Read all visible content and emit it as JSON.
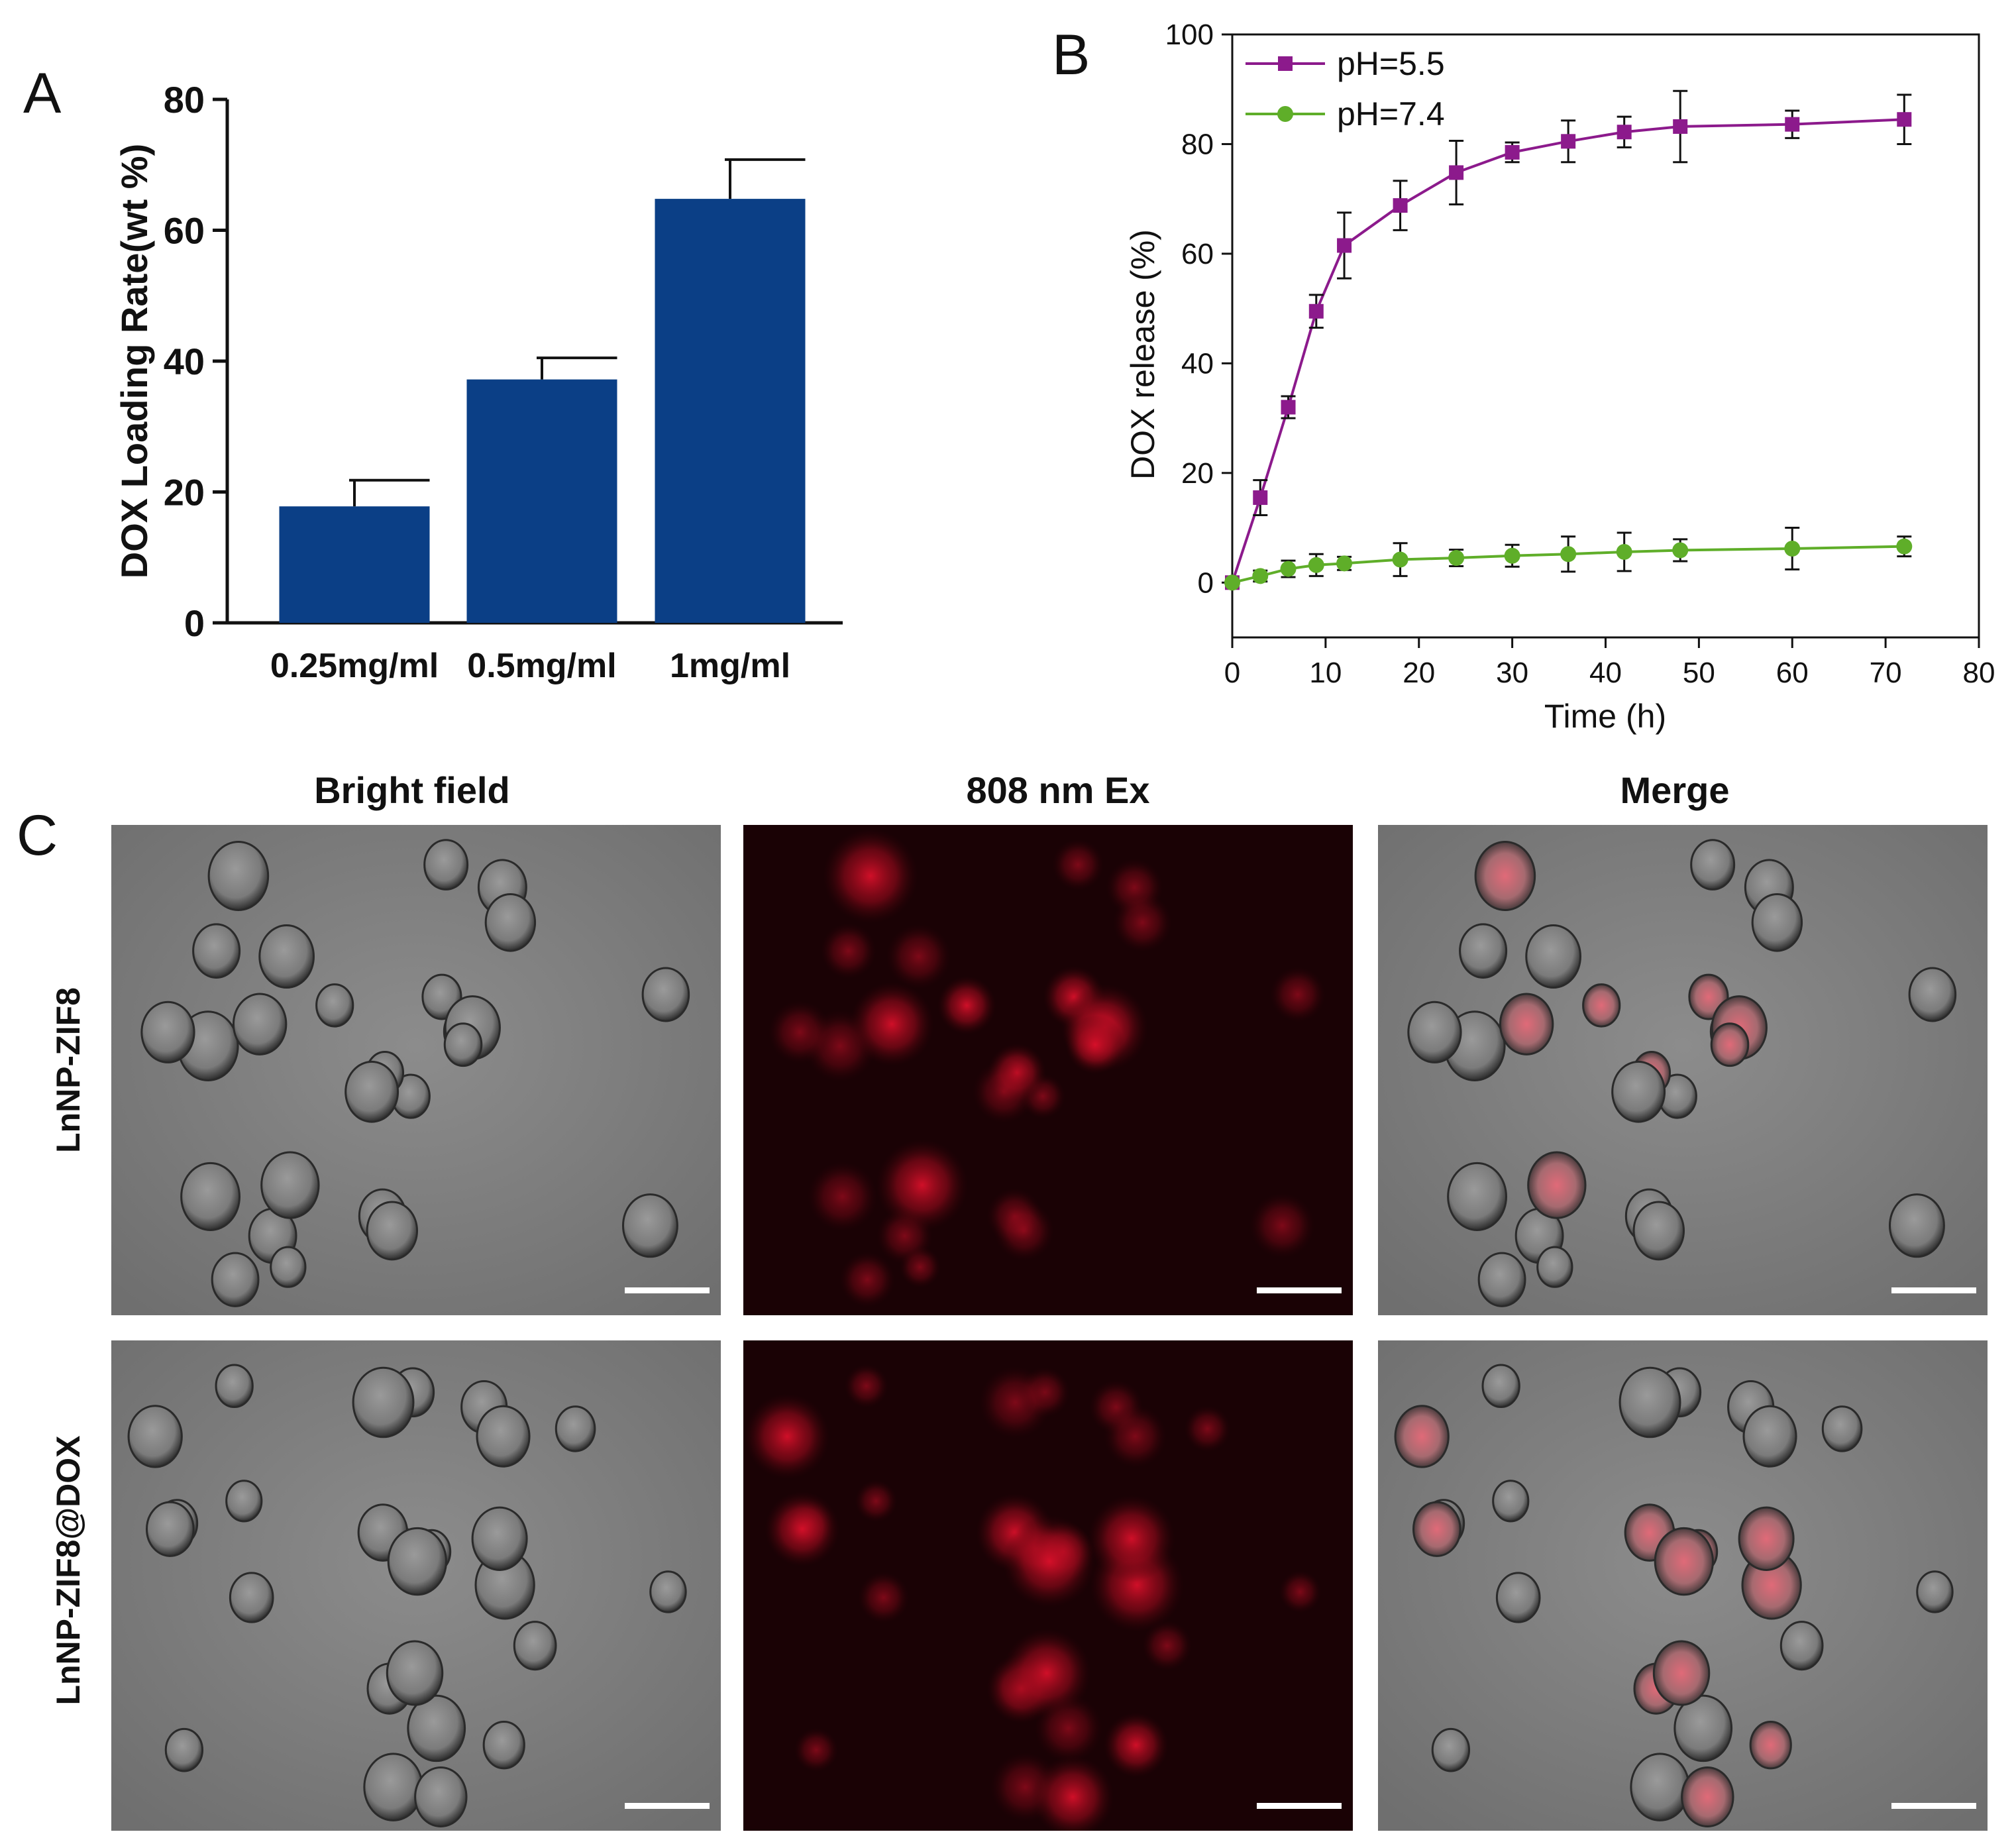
{
  "panels": {
    "a": "A",
    "b": "B",
    "c": "C"
  },
  "chart_data": [
    {
      "id": "A",
      "type": "bar",
      "categories": [
        "0.25mg/ml",
        "0.5mg/ml",
        "1mg/ml"
      ],
      "values": [
        17.8,
        37.2,
        64.8
      ],
      "errors": [
        4.0,
        3.3,
        6.0
      ],
      "ylabel": "DOX Loading Rate(wt %)",
      "xlabel": "",
      "ylim": [
        0,
        80
      ],
      "yticks": [
        0,
        20,
        40,
        60,
        80
      ],
      "ytick_labels": [
        "0",
        "20",
        "40",
        "60",
        "80"
      ],
      "bar_color": "#0b3f86"
    },
    {
      "id": "B",
      "type": "line",
      "xlabel": "Time (h)",
      "ylabel": "DOX release (%)",
      "xlim": [
        0,
        80
      ],
      "ylim": [
        -10,
        100
      ],
      "xticks": [
        0,
        10,
        20,
        30,
        40,
        50,
        60,
        70,
        80
      ],
      "xtick_labels": [
        "0",
        "10",
        "20",
        "30",
        "40",
        "50",
        "60",
        "70",
        "80"
      ],
      "yticks": [
        0,
        20,
        40,
        60,
        80,
        100
      ],
      "ytick_labels": [
        "0",
        "20",
        "40",
        "60",
        "80",
        "100"
      ],
      "legend_position": "top-left",
      "series": [
        {
          "name": "pH=5.5",
          "marker": "square",
          "color": "#8c1a8c",
          "x": [
            0,
            3,
            6,
            9,
            12,
            18,
            24,
            30,
            36,
            42,
            48,
            60,
            72
          ],
          "y": [
            0,
            15.5,
            32,
            49.5,
            61.5,
            68.8,
            74.8,
            78.5,
            80.5,
            82.2,
            83.2,
            83.6,
            84.5
          ],
          "err": [
            0,
            3.2,
            2.0,
            3.0,
            6.0,
            4.5,
            5.8,
            1.8,
            3.8,
            2.8,
            6.5,
            2.5,
            4.5
          ]
        },
        {
          "name": "pH=7.4",
          "marker": "circle",
          "color": "#5fae29",
          "x": [
            0,
            3,
            6,
            9,
            12,
            18,
            24,
            30,
            36,
            42,
            48,
            60,
            72
          ],
          "y": [
            0,
            1.2,
            2.5,
            3.2,
            3.5,
            4.2,
            4.5,
            4.9,
            5.2,
            5.6,
            5.9,
            6.2,
            6.6
          ],
          "err": [
            0,
            1.0,
            1.5,
            2.0,
            1.2,
            3.0,
            1.5,
            2.0,
            3.2,
            3.5,
            2.0,
            3.8,
            1.8
          ]
        }
      ]
    },
    {
      "id": "C",
      "type": "image_grid",
      "column_titles": [
        "Bright field",
        "808 nm Ex",
        "Merge"
      ],
      "row_labels": [
        "LnNP-ZIF8",
        "LnNP-ZIF8@DOX"
      ]
    }
  ]
}
